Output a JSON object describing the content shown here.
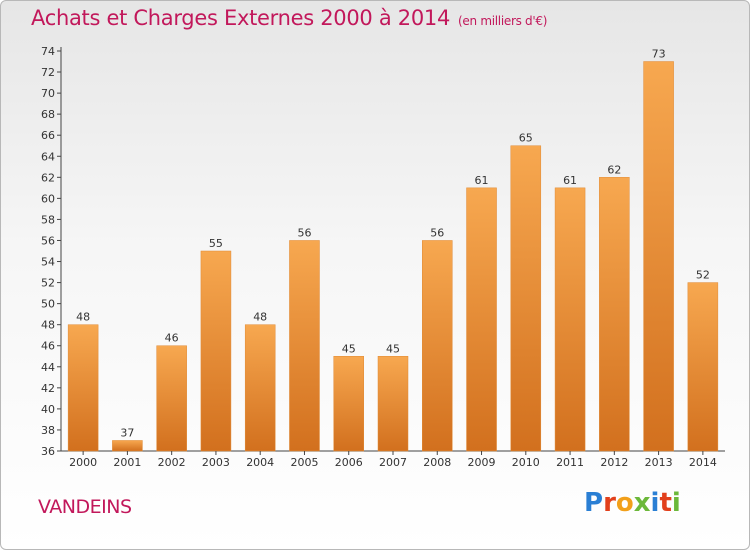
{
  "title": "Achats et Charges Externes 2000 à 2014",
  "subtitle": "(en milliers d'€)",
  "commune": "VANDEINS",
  "logo": {
    "text": "Proxiti",
    "colors": [
      "#2a7fd4",
      "#e2401c",
      "#f2a01a",
      "#6cb83a",
      "#2a7fd4",
      "#e2401c",
      "#6cb83a"
    ]
  },
  "chart_data": {
    "type": "bar",
    "categories": [
      "2000",
      "2001",
      "2002",
      "2003",
      "2004",
      "2005",
      "2006",
      "2007",
      "2008",
      "2009",
      "2010",
      "2011",
      "2012",
      "2013",
      "2014"
    ],
    "values": [
      48,
      37,
      46,
      55,
      48,
      56,
      45,
      45,
      56,
      61,
      65,
      61,
      62,
      73,
      52
    ],
    "ylim": [
      36,
      74
    ],
    "yticks": [
      36,
      38,
      40,
      42,
      44,
      46,
      48,
      50,
      52,
      54,
      56,
      58,
      60,
      62,
      64,
      66,
      68,
      70,
      72,
      74
    ],
    "grid": false,
    "bar_color": "#f0973f"
  }
}
